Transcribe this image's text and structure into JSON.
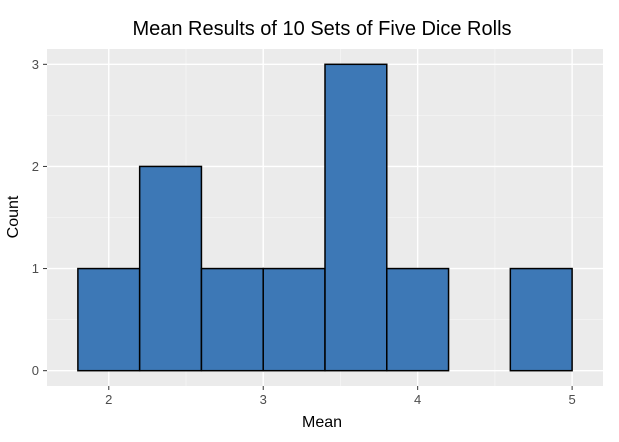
{
  "chart_data": {
    "type": "bar",
    "title": "Mean Results of 10 Sets of Five Dice Rolls",
    "xlabel": "Mean",
    "ylabel": "Count",
    "bins": [
      {
        "x0": 1.8,
        "x1": 2.2,
        "count": 1
      },
      {
        "x0": 2.2,
        "x1": 2.6,
        "count": 2
      },
      {
        "x0": 2.6,
        "x1": 3.0,
        "count": 1
      },
      {
        "x0": 3.0,
        "x1": 3.4,
        "count": 1
      },
      {
        "x0": 3.4,
        "x1": 3.8,
        "count": 3
      },
      {
        "x0": 3.8,
        "x1": 4.2,
        "count": 1
      },
      {
        "x0": 4.2,
        "x1": 4.6,
        "count": 0
      },
      {
        "x0": 4.6,
        "x1": 5.0,
        "count": 1
      }
    ],
    "x_ticks": [
      2,
      3,
      4,
      5
    ],
    "y_ticks": [
      0,
      1,
      2,
      3
    ],
    "xlim": [
      1.6,
      5.2
    ],
    "ylim": [
      -0.15,
      3.15
    ],
    "grid": true,
    "colors": {
      "bar_fill": "#3D78B6",
      "bar_stroke": "#000000",
      "panel_bg": "#EBEBEB",
      "grid_major": "#FFFFFF",
      "grid_minor": "#F5F5F5",
      "tick_text": "#4D4D4D",
      "axis_text": "#000000"
    }
  }
}
